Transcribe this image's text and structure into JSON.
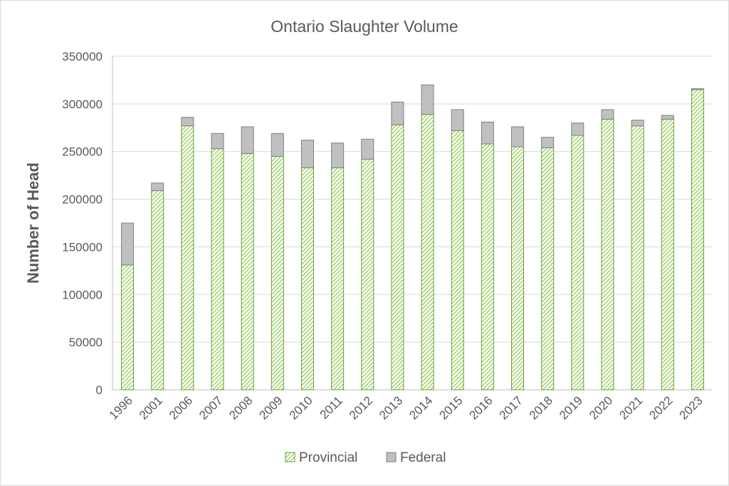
{
  "chart_data": {
    "type": "bar",
    "stacked": true,
    "title": "Ontario Slaughter Volume",
    "xlabel": "",
    "ylabel": "Number of Head",
    "ylim": [
      0,
      350000
    ],
    "yticks": [
      0,
      50000,
      100000,
      150000,
      200000,
      250000,
      300000,
      350000
    ],
    "grid": true,
    "legend_position": "bottom",
    "categories": [
      "1996",
      "2001",
      "2006",
      "2007",
      "2008",
      "2009",
      "2010",
      "2011",
      "2012",
      "2013",
      "2014",
      "2015",
      "2016",
      "2017",
      "2018",
      "2019",
      "2020",
      "2021",
      "2022",
      "2023"
    ],
    "series": [
      {
        "name": "Provincial",
        "color": "#92d050",
        "pattern": "diagonal-hatch",
        "values": [
          131000,
          209000,
          277000,
          253000,
          248000,
          245000,
          233000,
          233000,
          242000,
          278000,
          289000,
          272000,
          258000,
          255000,
          254000,
          267000,
          284000,
          277000,
          284000,
          315000
        ]
      },
      {
        "name": "Federal",
        "color": "#c0c0c0",
        "values": [
          44000,
          8000,
          9000,
          16000,
          28000,
          24000,
          29000,
          26000,
          21000,
          24000,
          31000,
          22000,
          23000,
          21000,
          11000,
          13000,
          10000,
          6000,
          4000,
          1000
        ]
      }
    ]
  }
}
